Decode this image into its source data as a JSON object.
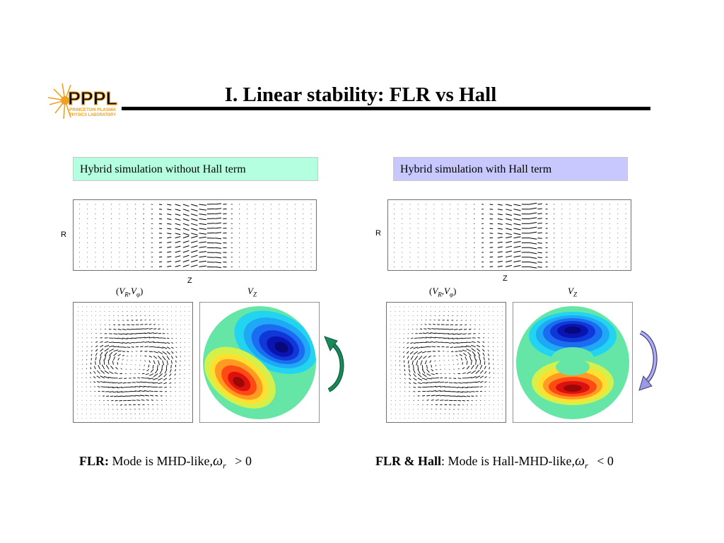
{
  "logo": {
    "text": "PPPL",
    "subline1": "PRINCETON PLASMA",
    "subline2": "PHYSICS LABORATORY",
    "icon": "sunburst-icon"
  },
  "title": "I.  Linear stability: FLR vs Hall",
  "panels": {
    "left": {
      "caption": "Hybrid simulation without Hall term",
      "caption_color": "#b4ffe0",
      "r_label": "R",
      "z_label": "Z",
      "vrvphi_label": {
        "open": "(",
        "v1": "V",
        "s1": "R",
        "comma": ",",
        "v2": "V",
        "s2": "φ",
        "close": ")"
      },
      "vz_label": {
        "v": "V",
        "s": "Z"
      },
      "arrow_direction": "up",
      "arrow_color": "#1a8a5a",
      "bottom": {
        "bold": "FLR:",
        "text": " Mode is MHD-like,",
        "omega": "ω",
        "sub": "r",
        "rel": "> 0"
      }
    },
    "right": {
      "caption": "Hybrid simulation with Hall term",
      "caption_color": "#c8c8ff",
      "r_label": "R",
      "z_label": "Z",
      "vrvphi_label": {
        "open": "(",
        "v1": "V",
        "s1": "R",
        "comma": ",",
        "v2": "V",
        "s2": "φ",
        "close": ")"
      },
      "vz_label": {
        "v": "V",
        "s": "Z"
      },
      "arrow_direction": "down",
      "arrow_color": "#8080d0",
      "bottom": {
        "bold": "FLR & Hall",
        "text": ": Mode is Hall-MHD-like,",
        "omega": "ω",
        "sub": "r",
        "rel": "< 0"
      }
    }
  }
}
